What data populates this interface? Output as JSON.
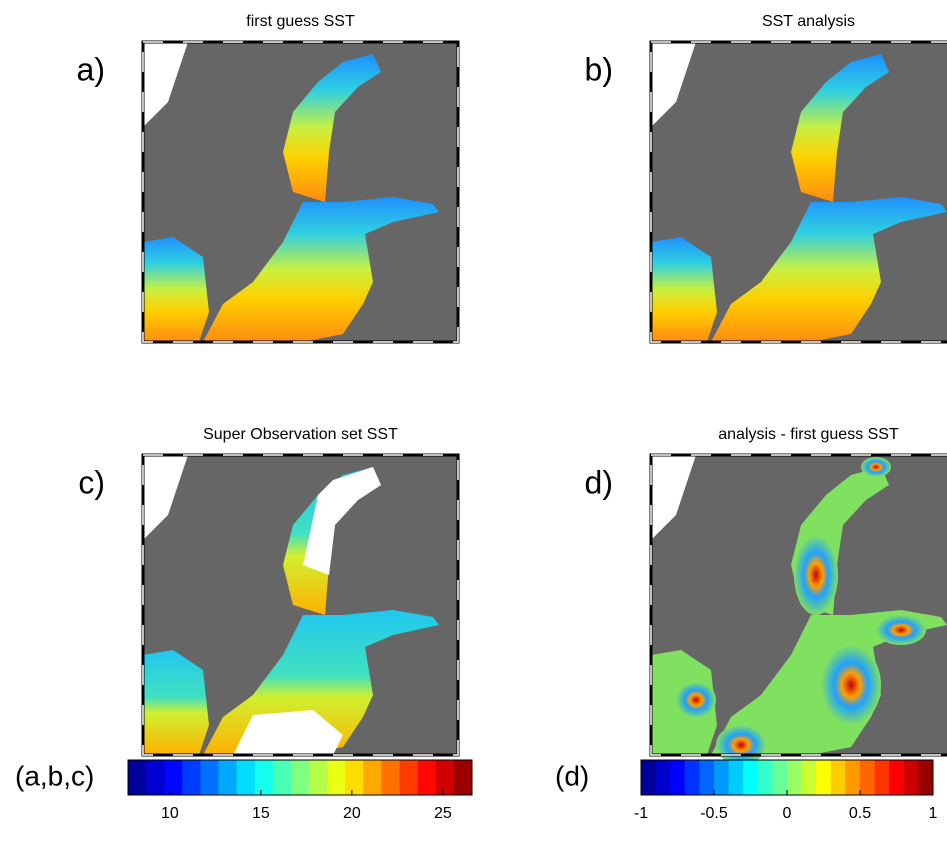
{
  "panels": [
    {
      "letter": "a)",
      "title": "first guess SST"
    },
    {
      "letter": "b)",
      "title": "SST analysis"
    },
    {
      "letter": "c)",
      "title": "Super Observation set SST"
    },
    {
      "letter": "d)",
      "title": "analysis - first guess SST"
    }
  ],
  "colorbars": [
    {
      "label": "(a,b,c)",
      "lim": [
        7.7,
        26.6
      ],
      "ticks": [
        10,
        15,
        20,
        25
      ],
      "levels": 19
    },
    {
      "label": "(d)",
      "lim": [
        -1,
        1
      ],
      "ticks": [
        -1,
        -0.5,
        0,
        0.5,
        1
      ],
      "levels": 20
    }
  ]
}
